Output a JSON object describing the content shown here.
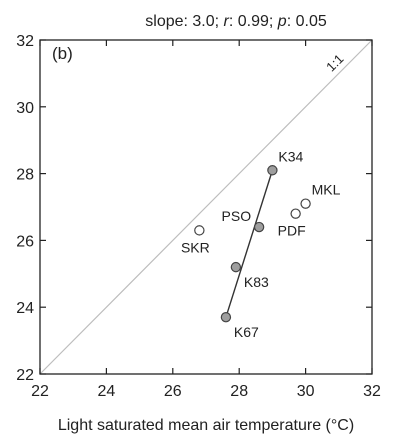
{
  "chart_data": {
    "type": "scatter",
    "title_parts": [
      {
        "text": "slope: 3.0; ",
        "italic": false
      },
      {
        "text": "r",
        "italic": true
      },
      {
        "text": ": 0.99; ",
        "italic": false
      },
      {
        "text": "p",
        "italic": true
      },
      {
        "text": ": 0.05",
        "italic": false
      }
    ],
    "panel_label": "(b)",
    "xlabel": "Light saturated mean air temperature (°C)",
    "ylabel": "",
    "xlim": [
      22,
      32
    ],
    "ylim": [
      22,
      32
    ],
    "xticks": [
      22,
      24,
      26,
      28,
      30,
      32
    ],
    "yticks": [
      22,
      24,
      26,
      28,
      30,
      32
    ],
    "tick_labels_x": [
      "22",
      "24",
      "26",
      "28",
      "30",
      "32"
    ],
    "tick_labels_y": [
      "22",
      "24",
      "26",
      "28",
      "30",
      "32"
    ],
    "reference_line": {
      "label": "1:1",
      "from": [
        22,
        22
      ],
      "to": [
        32,
        32
      ],
      "color": "#bdbdbd"
    },
    "points": [
      {
        "label": "K34",
        "x": 29.0,
        "y": 28.1,
        "filled": true,
        "label_pos": "above-right"
      },
      {
        "label": "MKL",
        "x": 30.0,
        "y": 27.1,
        "filled": false,
        "label_pos": "above-right"
      },
      {
        "label": "PDF",
        "x": 29.7,
        "y": 26.8,
        "filled": false,
        "label_pos": "below"
      },
      {
        "label": "PSO",
        "x": 28.6,
        "y": 26.4,
        "filled": true,
        "label_pos": "above-left"
      },
      {
        "label": "SKR",
        "x": 26.8,
        "y": 26.3,
        "filled": false,
        "label_pos": "below"
      },
      {
        "label": "K83",
        "x": 27.9,
        "y": 25.2,
        "filled": true,
        "label_pos": "below-right"
      },
      {
        "label": "K67",
        "x": 27.6,
        "y": 23.7,
        "filled": true,
        "label_pos": "below-right"
      }
    ],
    "regression_line": {
      "from": [
        27.6,
        23.7
      ],
      "to": [
        29.0,
        28.1
      ],
      "color": "#333333"
    },
    "colors": {
      "filled_marker": "#9e9e9e",
      "open_marker": "#ffffff",
      "marker_edge": "#444444",
      "axis": "#222222"
    }
  }
}
